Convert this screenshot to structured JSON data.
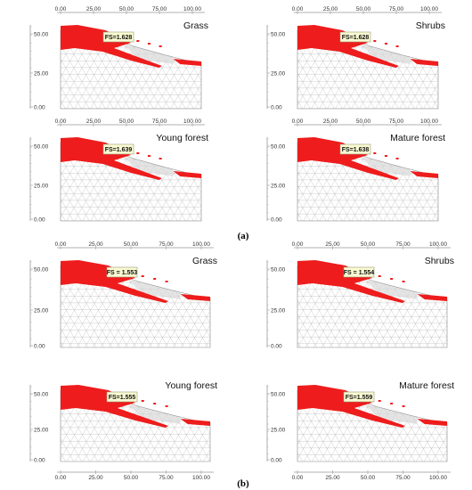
{
  "section_a": {
    "label": "(a)",
    "panels": [
      {
        "title": "Grass",
        "fs": "FS=1.628",
        "x_ticks": [
          "0.00",
          "25.00",
          "50.00",
          "75.00",
          "100.00"
        ],
        "y_ticks": [
          "50.00",
          "25.00",
          "0.00"
        ],
        "x_axis": "top"
      },
      {
        "title": "Shrubs",
        "fs": "FS=1.628",
        "x_ticks": [
          "0.00",
          "25.00",
          "50.00",
          "75.00",
          "100.00"
        ],
        "y_ticks": [
          "50.00",
          "25.00",
          "0.00"
        ],
        "x_axis": "top"
      },
      {
        "title": "Young forest",
        "fs": "FS=1.639",
        "x_ticks": [
          "0.00",
          "25.00",
          "50.00",
          "75.00",
          "100.00"
        ],
        "y_ticks": [
          "50.00",
          "25.00",
          "0.00"
        ],
        "x_axis": "top"
      },
      {
        "title": "Mature forest",
        "fs": "FS=1.638",
        "x_ticks": [
          "0.00",
          "25.00",
          "50.00",
          "75.00",
          "100.00"
        ],
        "y_ticks": [
          "50.00",
          "25.00",
          "0.00"
        ],
        "x_axis": "top"
      }
    ]
  },
  "section_b": {
    "label": "(b)",
    "panels": [
      {
        "title": "Grass",
        "fs": "FS = 1.553",
        "x_ticks": [
          "0.00",
          "25.00",
          "50.00",
          "75.00",
          "100.00"
        ],
        "y_ticks": [
          "50.00",
          "25.00",
          "0.00"
        ],
        "x_axis": "top"
      },
      {
        "title": "Shrubs",
        "fs": "FS = 1.554",
        "x_ticks": [
          "0.00",
          "25.00",
          "50.00",
          "75.00",
          "100.00"
        ],
        "y_ticks": [
          "50.00",
          "25.00",
          "0.00"
        ],
        "x_axis": "top"
      },
      {
        "title": "Young forest",
        "fs": "FS=1.555",
        "x_ticks": [
          "0.00",
          "25.00",
          "50.00",
          "75.00",
          "100.00"
        ],
        "y_ticks": [
          "50.00",
          "25.00",
          "0.00"
        ],
        "x_axis": "bottom"
      },
      {
        "title": "Mature forest",
        "fs": "FS=1.559",
        "x_ticks": [
          "0.00",
          "25.00",
          "50.00",
          "75.00",
          "100.00"
        ],
        "y_ticks": [
          "50.00",
          "25.00",
          "0.00"
        ],
        "x_axis": "bottom"
      }
    ]
  },
  "colors": {
    "failure_zone": "#ee1c1c",
    "mesh_line": "#b4b4b4",
    "fs_box": "#fafad2",
    "axis": "#999999"
  }
}
